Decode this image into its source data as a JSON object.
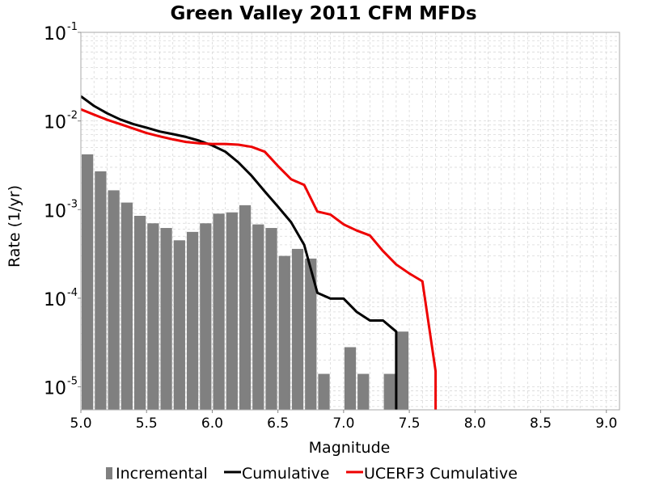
{
  "colors": {
    "incremental": "#808080",
    "cumulative": "#000000",
    "ucerf3": "#ee0000",
    "grid": "#d8d8d8",
    "plot_border": "#aaaaaa"
  },
  "chart_data": {
    "type": "bar",
    "title": "Green Valley 2011 CFM MFDs",
    "xlabel": "Magnitude",
    "ylabel": "Rate (1/yr)",
    "xlim": [
      5.0,
      9.1
    ],
    "ylim": [
      5.5e-06,
      0.1
    ],
    "yscale": "log",
    "grid": true,
    "legend_position": "bottom",
    "x_ticks": [
      "5.0",
      "5.5",
      "6.0",
      "6.5",
      "7.0",
      "7.5",
      "8.0",
      "8.5",
      "9.0"
    ],
    "y_ticks": [
      {
        "base": "10",
        "exp": "-5",
        "value": 1e-05
      },
      {
        "base": "10",
        "exp": "-4",
        "value": 0.0001
      },
      {
        "base": "10",
        "exp": "-3",
        "value": 0.001
      },
      {
        "base": "10",
        "exp": "-2",
        "value": 0.01
      },
      {
        "base": "10",
        "exp": "-1",
        "value": 0.1
      }
    ],
    "bar_width": 0.1,
    "series": [
      {
        "name": "Incremental",
        "kind": "bar",
        "x": [
          5.05,
          5.15,
          5.25,
          5.35,
          5.45,
          5.55,
          5.65,
          5.75,
          5.85,
          5.95,
          6.05,
          6.15,
          6.25,
          6.35,
          6.45,
          6.55,
          6.65,
          6.75,
          6.85,
          7.05,
          7.15,
          7.35,
          7.45
        ],
        "values": [
          0.0042,
          0.0027,
          0.00165,
          0.0012,
          0.00085,
          0.0007,
          0.00062,
          0.00045,
          0.00056,
          0.0007,
          0.0009,
          0.00093,
          0.00112,
          0.00068,
          0.00062,
          0.0003,
          0.00036,
          0.00028,
          1.4e-05,
          2.8e-05,
          1.4e-05,
          1.4e-05,
          4.2e-05
        ]
      },
      {
        "name": "Cumulative",
        "kind": "line",
        "x": [
          5.0,
          5.1,
          5.2,
          5.3,
          5.4,
          5.5,
          5.6,
          5.7,
          5.8,
          5.9,
          6.0,
          6.1,
          6.2,
          6.3,
          6.4,
          6.5,
          6.6,
          6.7,
          6.8,
          6.9,
          7.0,
          7.1,
          7.2,
          7.3,
          7.4,
          7.4
        ],
        "values": [
          0.019,
          0.0148,
          0.0122,
          0.0104,
          0.0092,
          0.0084,
          0.0076,
          0.0071,
          0.0066,
          0.006,
          0.0053,
          0.0045,
          0.0034,
          0.0024,
          0.0016,
          0.00108,
          0.00072,
          0.0004,
          0.000115,
          9.9e-05,
          9.9e-05,
          7e-05,
          5.6e-05,
          5.6e-05,
          4.2e-05,
          5e-06
        ]
      },
      {
        "name": "UCERF3 Cumulative",
        "kind": "line",
        "x": [
          5.0,
          5.1,
          5.2,
          5.3,
          5.4,
          5.5,
          5.6,
          5.7,
          5.8,
          5.9,
          6.0,
          6.1,
          6.2,
          6.3,
          6.4,
          6.5,
          6.6,
          6.7,
          6.8,
          6.9,
          7.0,
          7.1,
          7.2,
          7.3,
          7.4,
          7.5,
          7.6,
          7.7,
          7.7
        ],
        "values": [
          0.0135,
          0.0118,
          0.0103,
          0.0092,
          0.0082,
          0.0073,
          0.0067,
          0.0062,
          0.0058,
          0.0056,
          0.0055,
          0.0055,
          0.0054,
          0.0051,
          0.0045,
          0.0031,
          0.0022,
          0.0019,
          0.00095,
          0.00088,
          0.00068,
          0.00058,
          0.00051,
          0.00034,
          0.00024,
          0.00019,
          0.000155,
          1.5e-05,
          5e-06
        ]
      }
    ]
  }
}
